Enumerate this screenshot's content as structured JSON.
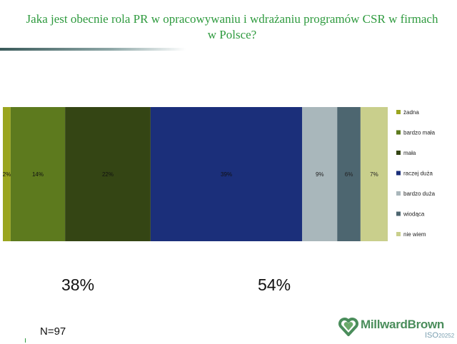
{
  "title": "Jaka jest obecnie rola PR w opracowywaniu i wdrażaniu programów CSR w firmach w Polsce?",
  "chart_data": {
    "type": "bar",
    "orientation": "horizontal-stacked-100",
    "series": [
      {
        "name": "żadna",
        "value": 2,
        "label": "2%",
        "color": "#9aa51f"
      },
      {
        "name": "bardzo mała",
        "value": 14,
        "label": "14%",
        "color": "#5d7a1e"
      },
      {
        "name": "mała",
        "value": 22,
        "label": "22%",
        "color": "#344514"
      },
      {
        "name": "raczej duża",
        "value": 39,
        "label": "39%",
        "color": "#1b2f7a"
      },
      {
        "name": "bardzo duża",
        "value": 9,
        "label": "9%",
        "color": "#a9b7bb"
      },
      {
        "name": "wiodąca",
        "value": 6,
        "label": "6%",
        "color": "#4d6670"
      },
      {
        "name": "nie wiem",
        "value": 7,
        "label": "7%",
        "color": "#c9cf8c"
      }
    ],
    "legend_position": "right"
  },
  "summary": {
    "left": "38%",
    "right": "54%"
  },
  "sample": "N=97",
  "brand": {
    "name": "MillwardBrown",
    "iso": "ISO",
    "iso_number": "20252",
    "color": "#4a8d5b"
  }
}
